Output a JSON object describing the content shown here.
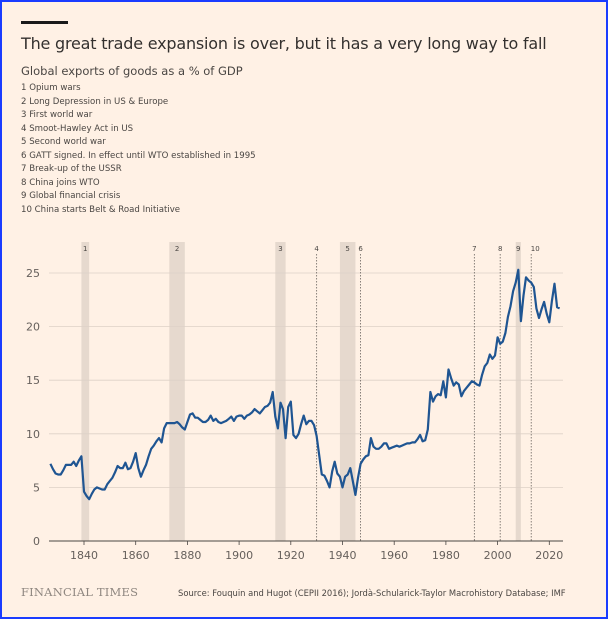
{
  "title": "The great trade expansion is over, but it has a very long way to fall",
  "subtitle": "Global exports of goods as a % of GDP",
  "notes": [
    "1 Opium wars",
    "2 Long Depression in US & Europe",
    "3 First world war",
    "4 Smoot-Hawley Act in US",
    "5 Second world war",
    "6 GATT signed. In effect until WTO established in 1995",
    "7 Break-up of the USSR",
    "8 China joins WTO",
    "9 Global financial crisis",
    "10 China starts Belt & Road Initiative"
  ],
  "footer": {
    "logo": "FINANCIAL TIMES",
    "source": "Source: Fouquin and Hugot (CEPII 2016); Jordà-Schularick-Taylor Macrohistory Database; IMF"
  },
  "colors": {
    "line": "#1f5592",
    "band": "#e6d9ce",
    "grid": "#ddd1c7",
    "background": "#fff1e5",
    "border": "#1a3cff"
  },
  "chart_data": {
    "type": "line",
    "title": "",
    "xlabel": "",
    "ylabel": "",
    "xlim": [
      1827,
      2024
    ],
    "ylim": [
      0,
      27
    ],
    "x_ticks": [
      1840,
      1860,
      1880,
      1900,
      1920,
      1940,
      1960,
      1980,
      2000,
      2020
    ],
    "y_ticks": [
      0,
      5,
      10,
      15,
      20,
      25
    ],
    "grid": "horizontal",
    "bands": [
      {
        "label": "1",
        "start": 1839,
        "end": 1842
      },
      {
        "label": "2",
        "start": 1873,
        "end": 1879
      },
      {
        "label": "3",
        "start": 1914,
        "end": 1918
      },
      {
        "label": "5",
        "start": 1939,
        "end": 1945
      },
      {
        "label": "9",
        "start": 2007,
        "end": 2009
      }
    ],
    "events": [
      {
        "label": "4",
        "year": 1930
      },
      {
        "label": "6",
        "year": 1947
      },
      {
        "label": "7",
        "year": 1991
      },
      {
        "label": "8",
        "year": 2001
      },
      {
        "label": "10",
        "year": 2013
      }
    ],
    "series": [
      {
        "points": [
          [
            1827,
            7.2
          ],
          [
            1828,
            6.7
          ],
          [
            1829,
            6.3
          ],
          [
            1830,
            6.2
          ],
          [
            1831,
            6.2
          ],
          [
            1832,
            6.6
          ],
          [
            1833,
            7.1
          ],
          [
            1834,
            7.1
          ],
          [
            1835,
            7.1
          ],
          [
            1836,
            7.4
          ],
          [
            1837,
            7.0
          ],
          [
            1838,
            7.5
          ],
          [
            1839,
            7.9
          ],
          [
            1840,
            4.6
          ],
          [
            1841,
            4.2
          ],
          [
            1842,
            3.9
          ],
          [
            1843,
            4.4
          ],
          [
            1844,
            4.8
          ],
          [
            1845,
            5.0
          ],
          [
            1846,
            4.9
          ],
          [
            1847,
            4.8
          ],
          [
            1848,
            4.8
          ],
          [
            1849,
            5.3
          ],
          [
            1850,
            5.6
          ],
          [
            1851,
            5.9
          ],
          [
            1852,
            6.4
          ],
          [
            1853,
            7.0
          ],
          [
            1854,
            6.8
          ],
          [
            1855,
            6.8
          ],
          [
            1856,
            7.3
          ],
          [
            1857,
            6.7
          ],
          [
            1858,
            6.8
          ],
          [
            1859,
            7.4
          ],
          [
            1860,
            8.2
          ],
          [
            1861,
            6.8
          ],
          [
            1862,
            6.0
          ],
          [
            1863,
            6.6
          ],
          [
            1864,
            7.1
          ],
          [
            1865,
            7.9
          ],
          [
            1866,
            8.6
          ],
          [
            1867,
            8.9
          ],
          [
            1868,
            9.3
          ],
          [
            1869,
            9.6
          ],
          [
            1870,
            9.2
          ],
          [
            1871,
            10.5
          ],
          [
            1872,
            11.0
          ],
          [
            1873,
            11.0
          ],
          [
            1874,
            11.0
          ],
          [
            1875,
            11.0
          ],
          [
            1876,
            11.1
          ],
          [
            1877,
            10.9
          ],
          [
            1878,
            10.6
          ],
          [
            1879,
            10.4
          ],
          [
            1880,
            11.1
          ],
          [
            1881,
            11.8
          ],
          [
            1882,
            11.9
          ],
          [
            1883,
            11.5
          ],
          [
            1884,
            11.5
          ],
          [
            1885,
            11.3
          ],
          [
            1886,
            11.1
          ],
          [
            1887,
            11.1
          ],
          [
            1888,
            11.3
          ],
          [
            1889,
            11.7
          ],
          [
            1890,
            11.2
          ],
          [
            1891,
            11.4
          ],
          [
            1892,
            11.1
          ],
          [
            1893,
            11.0
          ],
          [
            1894,
            11.1
          ],
          [
            1895,
            11.2
          ],
          [
            1896,
            11.4
          ],
          [
            1897,
            11.6
          ],
          [
            1898,
            11.2
          ],
          [
            1899,
            11.6
          ],
          [
            1900,
            11.7
          ],
          [
            1901,
            11.7
          ],
          [
            1902,
            11.4
          ],
          [
            1903,
            11.7
          ],
          [
            1904,
            11.8
          ],
          [
            1905,
            12.0
          ],
          [
            1906,
            12.3
          ],
          [
            1907,
            12.1
          ],
          [
            1908,
            11.9
          ],
          [
            1909,
            12.2
          ],
          [
            1910,
            12.5
          ],
          [
            1911,
            12.6
          ],
          [
            1912,
            12.9
          ],
          [
            1913,
            13.9
          ],
          [
            1914,
            11.6
          ],
          [
            1915,
            10.5
          ],
          [
            1916,
            12.9
          ],
          [
            1917,
            12.3
          ],
          [
            1918,
            9.6
          ],
          [
            1919,
            12.5
          ],
          [
            1920,
            13.0
          ],
          [
            1921,
            9.9
          ],
          [
            1922,
            9.6
          ],
          [
            1923,
            10.0
          ],
          [
            1924,
            10.9
          ],
          [
            1925,
            11.7
          ],
          [
            1926,
            10.9
          ],
          [
            1927,
            11.2
          ],
          [
            1928,
            11.2
          ],
          [
            1929,
            10.8
          ],
          [
            1930,
            9.8
          ],
          [
            1931,
            8.0
          ],
          [
            1932,
            6.2
          ],
          [
            1933,
            6.1
          ],
          [
            1934,
            5.6
          ],
          [
            1935,
            5.0
          ],
          [
            1936,
            6.5
          ],
          [
            1937,
            7.4
          ],
          [
            1938,
            6.3
          ],
          [
            1939,
            6.0
          ],
          [
            1940,
            5.0
          ],
          [
            1941,
            6.0
          ],
          [
            1942,
            6.2
          ],
          [
            1943,
            6.8
          ],
          [
            1944,
            5.6
          ],
          [
            1945,
            4.3
          ],
          [
            1946,
            5.9
          ],
          [
            1947,
            7.2
          ],
          [
            1948,
            7.6
          ],
          [
            1949,
            7.9
          ],
          [
            1950,
            8.0
          ],
          [
            1951,
            9.6
          ],
          [
            1952,
            8.8
          ],
          [
            1953,
            8.6
          ],
          [
            1954,
            8.6
          ],
          [
            1955,
            8.8
          ],
          [
            1956,
            9.1
          ],
          [
            1957,
            9.1
          ],
          [
            1958,
            8.6
          ],
          [
            1959,
            8.7
          ],
          [
            1960,
            8.8
          ],
          [
            1961,
            8.9
          ],
          [
            1962,
            8.8
          ],
          [
            1963,
            8.9
          ],
          [
            1964,
            9.0
          ],
          [
            1965,
            9.1
          ],
          [
            1966,
            9.1
          ],
          [
            1967,
            9.2
          ],
          [
            1968,
            9.2
          ],
          [
            1969,
            9.5
          ],
          [
            1970,
            9.9
          ],
          [
            1971,
            9.3
          ],
          [
            1972,
            9.4
          ],
          [
            1973,
            10.4
          ],
          [
            1974,
            13.9
          ],
          [
            1975,
            13.0
          ],
          [
            1976,
            13.5
          ],
          [
            1977,
            13.7
          ],
          [
            1978,
            13.6
          ],
          [
            1979,
            14.9
          ],
          [
            1980,
            13.4
          ],
          [
            1981,
            16.0
          ],
          [
            1982,
            15.2
          ],
          [
            1983,
            14.5
          ],
          [
            1984,
            14.8
          ],
          [
            1985,
            14.6
          ],
          [
            1986,
            13.5
          ],
          [
            1987,
            14.0
          ],
          [
            1988,
            14.3
          ],
          [
            1989,
            14.6
          ],
          [
            1990,
            14.9
          ],
          [
            1991,
            14.8
          ],
          [
            1992,
            14.6
          ],
          [
            1993,
            14.5
          ],
          [
            1994,
            15.5
          ],
          [
            1995,
            16.3
          ],
          [
            1996,
            16.6
          ],
          [
            1997,
            17.4
          ],
          [
            1998,
            17.0
          ],
          [
            1999,
            17.3
          ],
          [
            2000,
            19.0
          ],
          [
            2001,
            18.4
          ],
          [
            2002,
            18.6
          ],
          [
            2003,
            19.4
          ],
          [
            2004,
            20.9
          ],
          [
            2005,
            21.9
          ],
          [
            2006,
            23.3
          ],
          [
            2007,
            24.1
          ],
          [
            2008,
            25.3
          ],
          [
            2009,
            20.5
          ],
          [
            2010,
            22.9
          ],
          [
            2011,
            24.6
          ],
          [
            2012,
            24.3
          ],
          [
            2013,
            24.1
          ],
          [
            2014,
            23.7
          ],
          [
            2015,
            21.7
          ],
          [
            2016,
            20.8
          ],
          [
            2017,
            21.6
          ],
          [
            2018,
            22.3
          ],
          [
            2019,
            21.2
          ],
          [
            2020,
            20.4
          ],
          [
            2021,
            22.4
          ],
          [
            2022,
            24.0
          ],
          [
            2023,
            21.8
          ],
          [
            2024,
            21.7
          ]
        ]
      }
    ]
  }
}
